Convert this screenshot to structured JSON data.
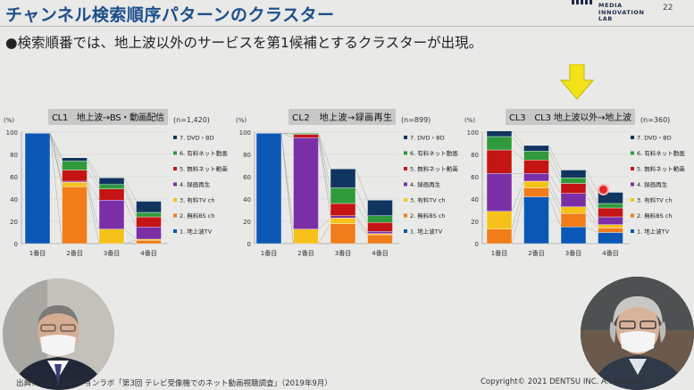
{
  "header": {
    "title": "チャンネル検索順序パターンのクラスター",
    "logo_lines": [
      "MEDIA",
      "INNOVATION",
      "LAB"
    ],
    "page_number": "22"
  },
  "bullet": "●検索順番では、地上波以外のサービスを第1候補とするクラスターが出現。",
  "colors": {
    "title": "#1c4f8c",
    "arrow": "#f2e21a",
    "series": [
      "#0b57b5",
      "#f07c1a",
      "#f6c21a",
      "#7b2fa6",
      "#c41414",
      "#2e9a3c",
      "#10365f"
    ]
  },
  "chart_data": [
    {
      "type": "bar",
      "stacked": true,
      "title": "CL1　地上波→BS・動画配信",
      "n": "(n=1,420)",
      "ylabel": "(%)",
      "ylim": [
        0,
        100
      ],
      "yticks": [
        "0",
        "20",
        "40",
        "60",
        "80",
        "100"
      ],
      "categories": [
        "1番目",
        "2番目",
        "3番目",
        "4番目"
      ],
      "series": [
        {
          "name": "1. 地上波TV",
          "values": [
            99,
            0,
            0,
            0
          ]
        },
        {
          "name": "2. 無料BS ch",
          "values": [
            0,
            51,
            0,
            3
          ]
        },
        {
          "name": "3. 有料TV ch",
          "values": [
            0,
            4,
            13,
            1
          ]
        },
        {
          "name": "4. 録画再生",
          "values": [
            0,
            1,
            26,
            11
          ]
        },
        {
          "name": "5. 無料ネット動画",
          "values": [
            0,
            10,
            10,
            9
          ]
        },
        {
          "name": "6. 有料ネット動画",
          "values": [
            0,
            8,
            4,
            4
          ]
        },
        {
          "name": "7. DVD・BD",
          "values": [
            0,
            3,
            6,
            10
          ]
        }
      ]
    },
    {
      "type": "bar",
      "stacked": true,
      "title": "CL2　地上波→録画再生",
      "n": "(n=899)",
      "ylabel": "(%)",
      "ylim": [
        0,
        100
      ],
      "yticks": [
        "0",
        "20",
        "40",
        "60",
        "80",
        "100"
      ],
      "categories": [
        "1番目",
        "2番目",
        "3番目",
        "4番目"
      ],
      "series": [
        {
          "name": "1. 地上波TV",
          "values": [
            99,
            0,
            0,
            0
          ]
        },
        {
          "name": "2. 無料BS ch",
          "values": [
            0,
            0,
            18,
            8
          ]
        },
        {
          "name": "3. 有料TV ch",
          "values": [
            0,
            13,
            5,
            1
          ]
        },
        {
          "name": "4. 録画再生",
          "values": [
            0,
            82,
            2,
            2
          ]
        },
        {
          "name": "5. 無料ネット動画",
          "values": [
            0,
            3,
            11,
            8
          ]
        },
        {
          "name": "6. 有料ネット動画",
          "values": [
            0,
            1,
            14,
            6
          ]
        },
        {
          "name": "7. DVD・BD",
          "values": [
            0,
            0,
            17,
            14
          ]
        }
      ]
    },
    {
      "type": "bar",
      "stacked": true,
      "title": "CL3　CL3 地上波以外→地上波",
      "n": "(n=360)",
      "ylabel": "(%)",
      "ylim": [
        0,
        100
      ],
      "yticks": [
        "0",
        "20",
        "40",
        "60",
        "80",
        "100"
      ],
      "categories": [
        "1番目",
        "2番目",
        "3番目",
        "4番目"
      ],
      "series": [
        {
          "name": "1. 地上波TV",
          "values": [
            0,
            42,
            15,
            10
          ]
        },
        {
          "name": "2. 無料BS ch",
          "values": [
            13,
            8,
            12,
            4
          ]
        },
        {
          "name": "3. 有料TV ch",
          "values": [
            16,
            6,
            6,
            3
          ]
        },
        {
          "name": "4. 録画再生",
          "values": [
            34,
            7,
            12,
            7
          ]
        },
        {
          "name": "5. 無料ネット動画",
          "values": [
            21,
            12,
            9,
            8
          ]
        },
        {
          "name": "6. 有料ネット動画",
          "values": [
            12,
            8,
            5,
            4
          ]
        },
        {
          "name": "7. DVD・BD",
          "values": [
            5,
            5,
            7,
            10
          ]
        }
      ]
    }
  ],
  "footer": {
    "source": "出典：…イノベーションラボ「第3回 テレビ受像機でのネット動画視聴調査」（2019年9月）",
    "copyright": "Copyright© 2021 DENTSU INC. A…eserved."
  }
}
